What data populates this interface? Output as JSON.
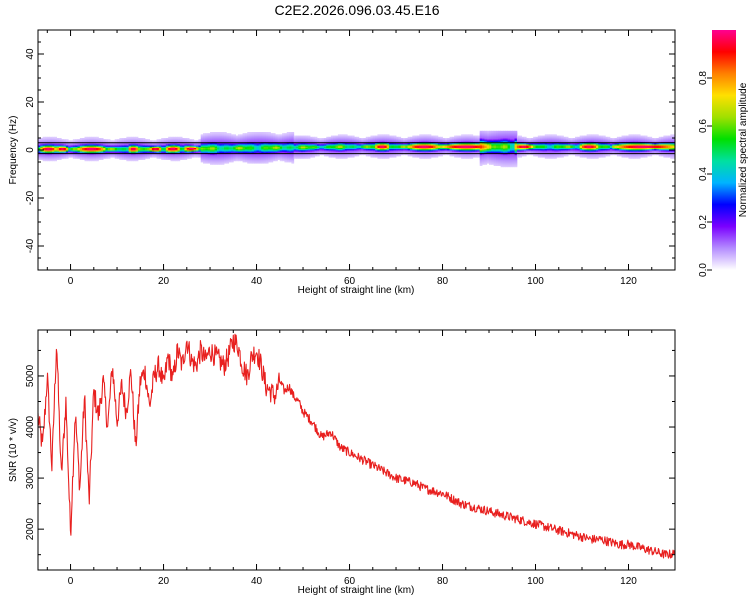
{
  "title": "C2E2.2026.096.03.45.E16",
  "colors": {
    "snr_line": "#e8201f",
    "frame": "#000000",
    "background": "#ffffff"
  },
  "chart_data": [
    {
      "type": "heatmap",
      "xlabel": "Height of straight line (km)",
      "ylabel": "Frequency (Hz)",
      "xlim": [
        -7,
        130
      ],
      "ylim": [
        -50,
        50
      ],
      "xticks": [
        "0",
        "20",
        "40",
        "60",
        "80",
        "100",
        "120"
      ],
      "yticks": [
        "40",
        "20",
        "0",
        "-20",
        "-40"
      ],
      "reference_lines_hz": [
        -1.5,
        3
      ],
      "colorbar": {
        "label": "Normalized spectral amplitude",
        "range": [
          0,
          1
        ],
        "ticks": [
          "0.0",
          "0.2",
          "0.4",
          "0.6",
          "0.8"
        ],
        "colormap": [
          "#ffffff",
          "#b48cff",
          "#7a00ff",
          "#0000ff",
          "#00b4ff",
          "#00e0a0",
          "#00e000",
          "#a0e000",
          "#ffe000",
          "#ff8000",
          "#ff0000",
          "#ff0090"
        ]
      },
      "ridge": {
        "description": "narrow band of high amplitude near 0-2 Hz along entire height range",
        "center_hz": [
          [
            -7,
            0.5
          ],
          [
            0,
            0.5
          ],
          [
            20,
            0.5
          ],
          [
            40,
            1
          ],
          [
            60,
            1.5
          ],
          [
            80,
            1.5
          ],
          [
            100,
            1.5
          ],
          [
            130,
            1.5
          ]
        ],
        "peak_segments_km": [
          [
            -6,
            -3.5
          ],
          [
            -2.5,
            -1
          ],
          [
            2,
            7
          ],
          [
            13,
            14
          ],
          [
            17.5,
            19
          ],
          [
            21,
            23
          ],
          [
            25,
            27
          ],
          [
            66,
            68
          ],
          [
            73,
            79
          ],
          [
            80,
            90
          ],
          [
            96,
            99
          ],
          [
            110,
            113
          ],
          [
            117,
            130
          ]
        ]
      }
    },
    {
      "type": "line",
      "xlabel": "Height of straight line (km)",
      "ylabel": "SNR (10 * v/v)",
      "xlim": [
        -7,
        130
      ],
      "ylim": [
        1200,
        5900
      ],
      "xticks": [
        "0",
        "20",
        "40",
        "60",
        "80",
        "100",
        "120"
      ],
      "yticks": [
        "2000",
        "3000",
        "4000",
        "5000"
      ],
      "series": [
        {
          "x": [
            -7,
            -6,
            -5,
            -4,
            -3,
            -2,
            -1,
            0,
            1,
            2,
            3,
            4,
            5,
            6,
            7,
            8,
            9,
            10,
            11,
            12,
            13,
            14,
            15,
            16,
            17,
            18,
            19,
            20,
            21,
            22,
            23,
            24,
            25,
            26,
            27,
            28,
            29,
            30,
            31,
            32,
            33,
            34,
            35,
            36,
            37,
            38,
            39,
            40,
            41,
            42,
            43,
            44,
            45,
            46,
            47,
            48,
            49,
            50,
            52,
            54,
            56,
            58,
            60,
            62,
            64,
            66,
            68,
            70,
            72,
            74,
            76,
            78,
            80,
            82,
            84,
            86,
            88,
            90,
            92,
            94,
            96,
            98,
            100,
            102,
            104,
            106,
            108,
            110,
            112,
            114,
            116,
            118,
            120,
            122,
            124,
            126,
            128,
            130
          ],
          "y": [
            4200,
            3600,
            5000,
            3200,
            5700,
            3000,
            4500,
            1900,
            4300,
            2800,
            4600,
            2500,
            4700,
            4200,
            4900,
            4000,
            5200,
            4100,
            4800,
            4300,
            5100,
            3600,
            4900,
            5100,
            4400,
            5000,
            5200,
            4800,
            5400,
            4900,
            5500,
            5200,
            5700,
            5300,
            5200,
            5500,
            5300,
            5500,
            5400,
            5300,
            5200,
            5400,
            5700,
            5600,
            5200,
            5000,
            5400,
            5500,
            5200,
            4800,
            4700,
            4600,
            4900,
            4700,
            4800,
            4600,
            4500,
            4300,
            4100,
            3800,
            3900,
            3600,
            3500,
            3400,
            3300,
            3200,
            3100,
            3000,
            2950,
            2900,
            2800,
            2750,
            2700,
            2600,
            2500,
            2450,
            2400,
            2350,
            2300,
            2250,
            2200,
            2150,
            2100,
            2050,
            2000,
            1950,
            1900,
            1850,
            1800,
            1800,
            1750,
            1700,
            1700,
            1650,
            1600,
            1550,
            1500,
            1520
          ]
        }
      ]
    }
  ]
}
